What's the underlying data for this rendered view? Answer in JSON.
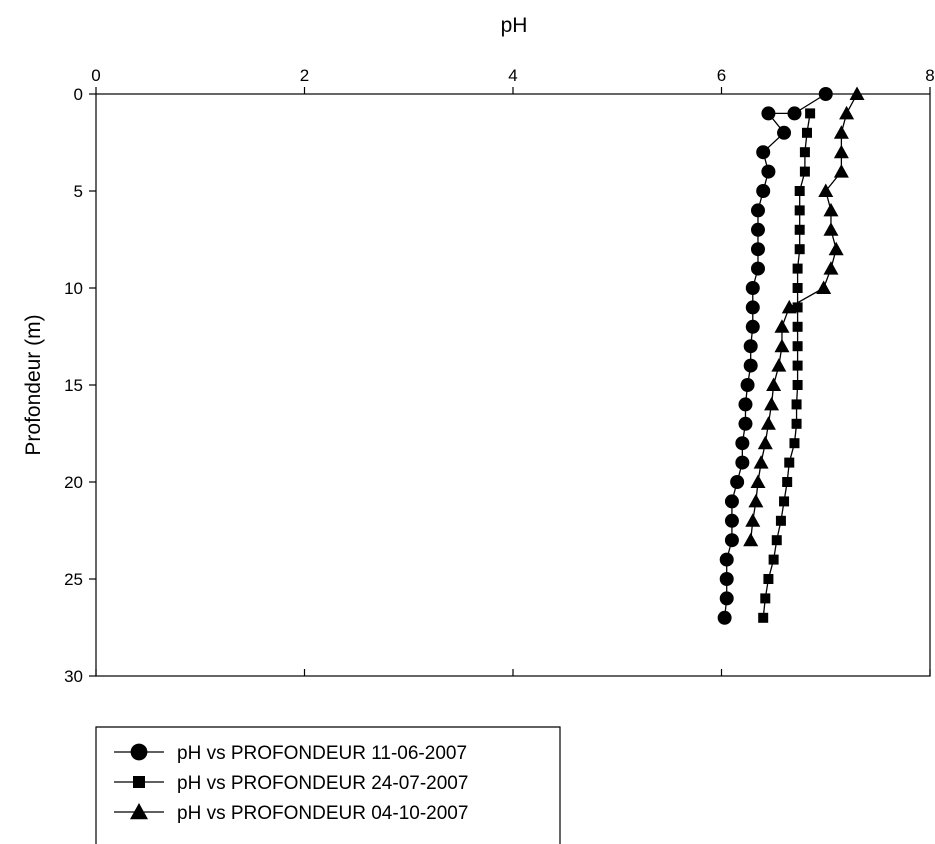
{
  "chart_data": {
    "type": "scatter",
    "title": "",
    "xlabel": "pH",
    "ylabel": "Profondeur (m)",
    "xlim": [
      0,
      8
    ],
    "ylim": [
      0,
      30
    ],
    "y_inverted": true,
    "x_axis_position": "top",
    "grid": false,
    "legend_position": "bottom-left",
    "x_ticks": [
      0,
      2,
      4,
      6,
      8
    ],
    "y_ticks": [
      0,
      5,
      10,
      15,
      20,
      25,
      30
    ],
    "series": [
      {
        "name": "pH vs PROFONDEUR 11-06-2007",
        "marker": "circle",
        "color": "#000000",
        "points": [
          [
            7.0,
            0
          ],
          [
            6.7,
            1
          ],
          [
            6.45,
            1
          ],
          [
            6.6,
            2
          ],
          [
            6.4,
            3
          ],
          [
            6.45,
            4
          ],
          [
            6.4,
            5
          ],
          [
            6.35,
            6
          ],
          [
            6.35,
            7
          ],
          [
            6.35,
            8
          ],
          [
            6.35,
            9
          ],
          [
            6.3,
            10
          ],
          [
            6.3,
            11
          ],
          [
            6.3,
            12
          ],
          [
            6.28,
            13
          ],
          [
            6.28,
            14
          ],
          [
            6.25,
            15
          ],
          [
            6.23,
            16
          ],
          [
            6.23,
            17
          ],
          [
            6.2,
            18
          ],
          [
            6.2,
            19
          ],
          [
            6.15,
            20
          ],
          [
            6.1,
            21
          ],
          [
            6.1,
            22
          ],
          [
            6.1,
            23
          ],
          [
            6.05,
            24
          ],
          [
            6.05,
            25
          ],
          [
            6.05,
            26
          ],
          [
            6.03,
            27
          ]
        ]
      },
      {
        "name": "pH vs PROFONDEUR 24-07-2007",
        "marker": "square",
        "color": "#000000",
        "points": [
          [
            6.85,
            1
          ],
          [
            6.82,
            2
          ],
          [
            6.8,
            3
          ],
          [
            6.8,
            4
          ],
          [
            6.75,
            5
          ],
          [
            6.75,
            6
          ],
          [
            6.75,
            7
          ],
          [
            6.75,
            8
          ],
          [
            6.73,
            9
          ],
          [
            6.73,
            10
          ],
          [
            6.73,
            11
          ],
          [
            6.73,
            12
          ],
          [
            6.73,
            13
          ],
          [
            6.73,
            14
          ],
          [
            6.73,
            15
          ],
          [
            6.72,
            16
          ],
          [
            6.72,
            17
          ],
          [
            6.7,
            18
          ],
          [
            6.65,
            19
          ],
          [
            6.63,
            20
          ],
          [
            6.6,
            21
          ],
          [
            6.57,
            22
          ],
          [
            6.53,
            23
          ],
          [
            6.5,
            24
          ],
          [
            6.45,
            25
          ],
          [
            6.42,
            26
          ],
          [
            6.4,
            27
          ]
        ]
      },
      {
        "name": "pH vs PROFONDEUR 04-10-2007",
        "marker": "triangle",
        "color": "#000000",
        "points": [
          [
            7.3,
            0
          ],
          [
            7.2,
            1
          ],
          [
            7.15,
            2
          ],
          [
            7.15,
            3
          ],
          [
            7.15,
            4
          ],
          [
            7.0,
            5
          ],
          [
            7.05,
            6
          ],
          [
            7.05,
            7
          ],
          [
            7.1,
            8
          ],
          [
            7.05,
            9
          ],
          [
            6.98,
            10
          ],
          [
            6.65,
            11
          ],
          [
            6.58,
            12
          ],
          [
            6.58,
            13
          ],
          [
            6.55,
            14
          ],
          [
            6.5,
            15
          ],
          [
            6.48,
            16
          ],
          [
            6.45,
            17
          ],
          [
            6.42,
            18
          ],
          [
            6.38,
            19
          ],
          [
            6.35,
            20
          ],
          [
            6.33,
            21
          ],
          [
            6.3,
            22
          ],
          [
            6.28,
            23
          ]
        ]
      }
    ]
  }
}
